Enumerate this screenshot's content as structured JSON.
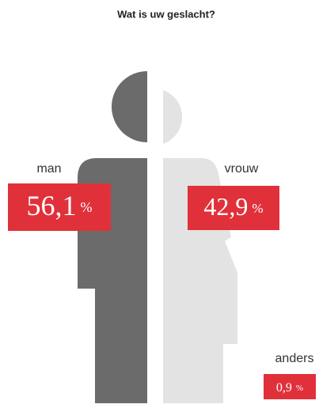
{
  "chart_data": {
    "type": "pictogram",
    "title": "Wat is uw geslacht?",
    "categories": [
      "man",
      "vrouw",
      "anders"
    ],
    "values": [
      56.1,
      42.9,
      0.9
    ],
    "value_labels": [
      "56,1",
      "42,9",
      "0,9"
    ],
    "unit": "%",
    "color": "#e0313b"
  }
}
